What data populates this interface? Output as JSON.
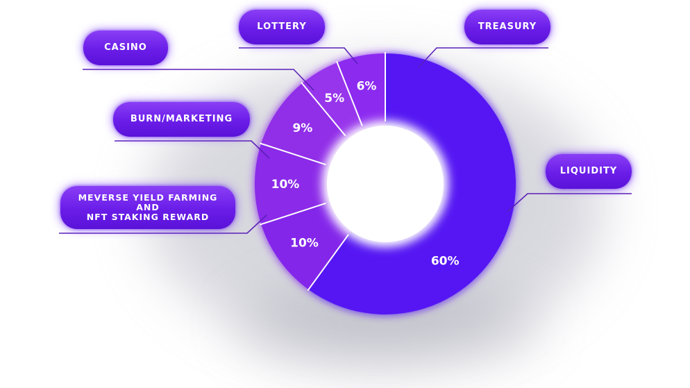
{
  "chart_data": {
    "type": "pie",
    "variant": "donut",
    "slices": [
      {
        "label": "LIQUIDITY",
        "value": 60,
        "value_label": "60%",
        "color": "#5512f3"
      },
      {
        "label": "MEVERSE YIELD FARMING\nAND\nNFT STAKING REWARD",
        "value": 10,
        "value_label": "10%",
        "color": "#8326ea"
      },
      {
        "label": "BURN/MARKETING",
        "value": 10,
        "value_label": "10%",
        "color": "#8b2ae8"
      },
      {
        "label": "CASINO",
        "value": 9,
        "value_label": "9%",
        "color": "#912ee8"
      },
      {
        "label": "LOTTERY",
        "value": 5,
        "value_label": "5%",
        "color": "#9734ec"
      },
      {
        "label": "TREASURY",
        "value": 6,
        "value_label": "6%",
        "color": "#8c2bf0"
      }
    ],
    "title": "",
    "legend": "callout labels around the donut"
  }
}
